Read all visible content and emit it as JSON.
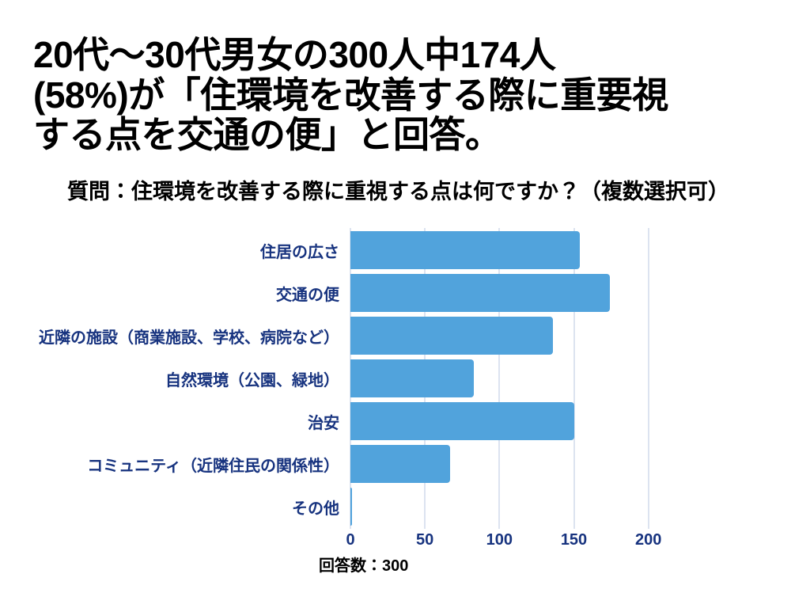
{
  "header": {
    "title_lines": [
      "20代〜30代男女の300人中174人",
      "(58%)が「住環境を改善する際に重要視",
      "する点を交通の便」と回答。"
    ],
    "subtitle": "質問：住環境を改善する際に重視する点は何ですか？（複数選択可）"
  },
  "chart_data": {
    "type": "bar",
    "orientation": "horizontal",
    "title": "質問：住環境を改善する際に重視する点は何ですか？（複数選択可）",
    "categories": [
      "住居の広さ",
      "交通の便",
      "近隣の施設（商業施設、学校、病院など）",
      "自然環境（公園、緑地）",
      "治安",
      "コミュニティ（近隣住民の関係性）",
      "その他"
    ],
    "values": [
      154,
      174,
      136,
      83,
      150,
      67,
      1
    ],
    "xlabel": "",
    "ylabel": "",
    "xticks": [
      0,
      50,
      100,
      150,
      200
    ],
    "xlim": [
      0,
      223
    ],
    "grid": true,
    "legend_position": "none",
    "footnote": "回答数：300",
    "total_respondents": "300",
    "colors": {
      "bar": "#51A3DC",
      "axis_text": "#17337F",
      "gridline": "#DCE3F0",
      "title_text": "#000000"
    }
  }
}
